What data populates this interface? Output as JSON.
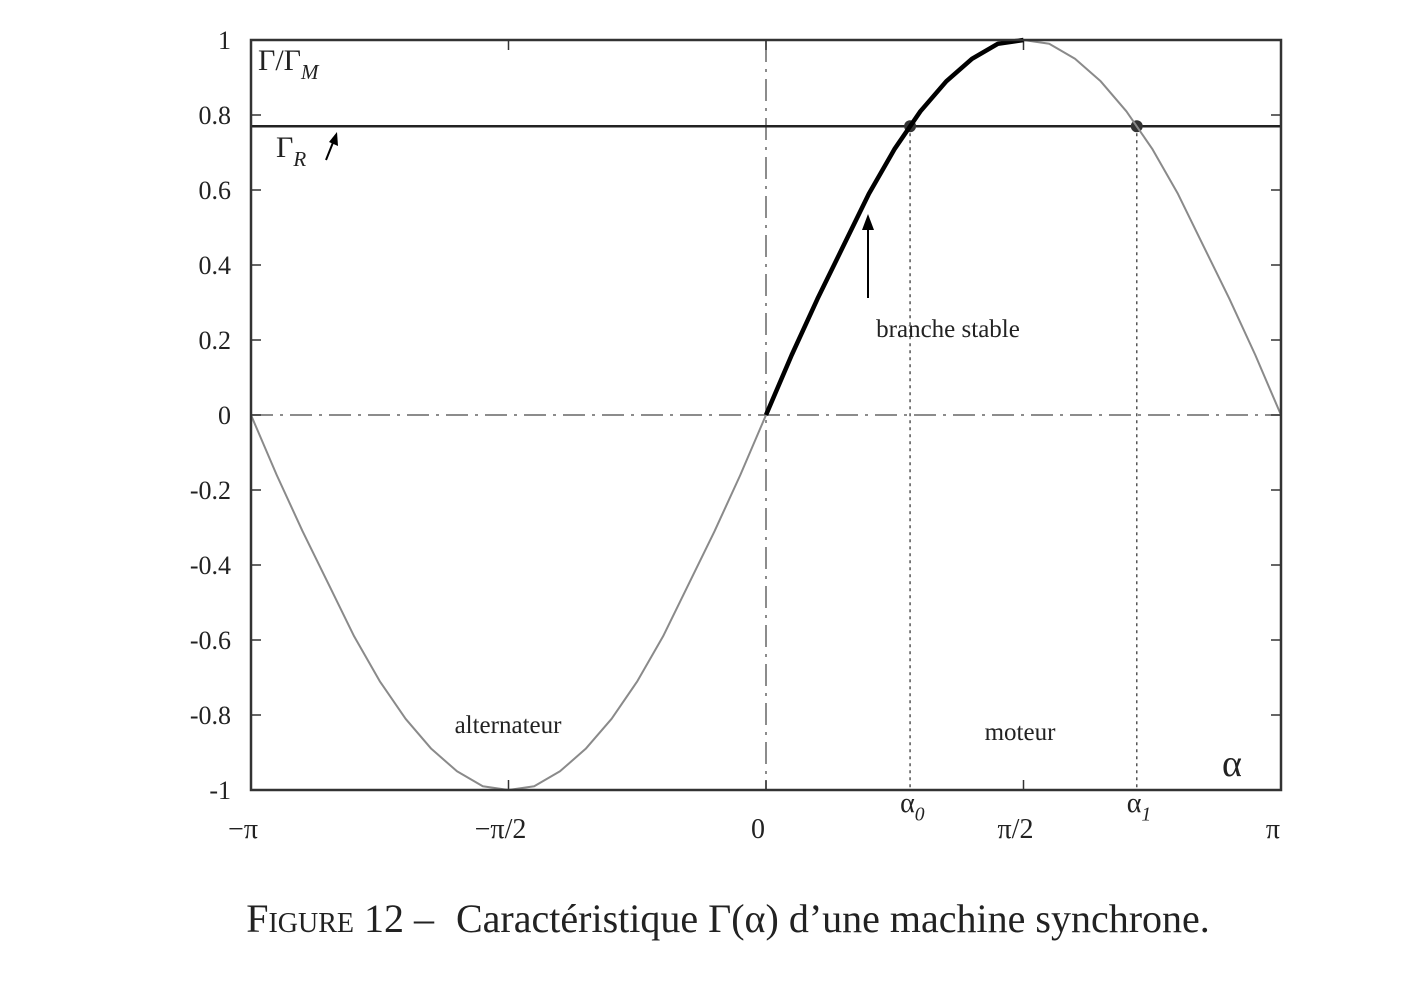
{
  "chart_data": {
    "type": "line",
    "x": [
      -3.142,
      -2.985,
      -2.827,
      -2.67,
      -2.513,
      -2.356,
      -2.199,
      -2.042,
      -1.885,
      -1.728,
      -1.571,
      -1.414,
      -1.257,
      -1.1,
      -0.942,
      -0.785,
      -0.628,
      -0.471,
      -0.314,
      -0.157,
      0,
      0.157,
      0.314,
      0.471,
      0.628,
      0.785,
      0.942,
      1.1,
      1.257,
      1.414,
      1.571,
      1.728,
      1.885,
      2.042,
      2.199,
      2.356,
      2.513,
      2.67,
      2.827,
      2.985,
      3.142
    ],
    "series": [
      {
        "color": "#8a8a8a",
        "values": [
          0,
          -0.16,
          -0.31,
          -0.45,
          -0.59,
          -0.71,
          -0.81,
          -0.89,
          -0.95,
          -0.99,
          -1,
          -0.99,
          -0.95,
          -0.89,
          -0.81,
          -0.71,
          -0.59,
          -0.45,
          -0.31,
          -0.16,
          0,
          0.16,
          0.31,
          0.45,
          0.59,
          0.71,
          0.81,
          0.89,
          0.95,
          0.99,
          1,
          0.99,
          0.95,
          0.89,
          0.81,
          0.71,
          0.59,
          0.45,
          0.31,
          0.16,
          0
        ]
      },
      {
        "color": "#000000",
        "x": [
          0,
          0.157,
          0.314,
          0.471,
          0.628,
          0.785,
          0.942,
          1.1,
          1.257,
          1.414,
          1.571
        ],
        "values": [
          0,
          0.16,
          0.31,
          0.45,
          0.59,
          0.71,
          0.81,
          0.89,
          0.95,
          0.99,
          1
        ]
      }
    ],
    "xlim": [
      -3.142,
      3.142
    ],
    "ylim": [
      -1,
      1
    ],
    "xticks": [
      {
        "value": -3.142,
        "label": "−π"
      },
      {
        "value": -1.571,
        "label": "−π/2"
      },
      0,
      {
        "value": 1.571,
        "label": "π/2"
      },
      {
        "value": 3.142,
        "label": "π"
      }
    ],
    "yticks": [
      1,
      0.8,
      0.6,
      0.4,
      0.2,
      0,
      -0.2,
      -0.4,
      -0.6,
      -0.8,
      -1
    ],
    "ylabel": {
      "main": "Γ/Γ",
      "sub": "M"
    },
    "xlabel": "α",
    "reference_line": {
      "value": 0.77,
      "label": {
        "main": "Γ",
        "sub": "R"
      }
    },
    "points": [
      {
        "x": 0.879,
        "y": 0.77,
        "label": {
          "main": "α",
          "sub": "0"
        }
      },
      {
        "x": 2.262,
        "y": 0.77,
        "label": {
          "main": "α",
          "sub": "1"
        }
      }
    ],
    "annotations": [
      "branche stable",
      "alternateur",
      "moteur"
    ],
    "caption": {
      "figure": "Figure 12 –",
      "text": "Caractéristique Γ(α) d’une machine synchrone."
    }
  }
}
